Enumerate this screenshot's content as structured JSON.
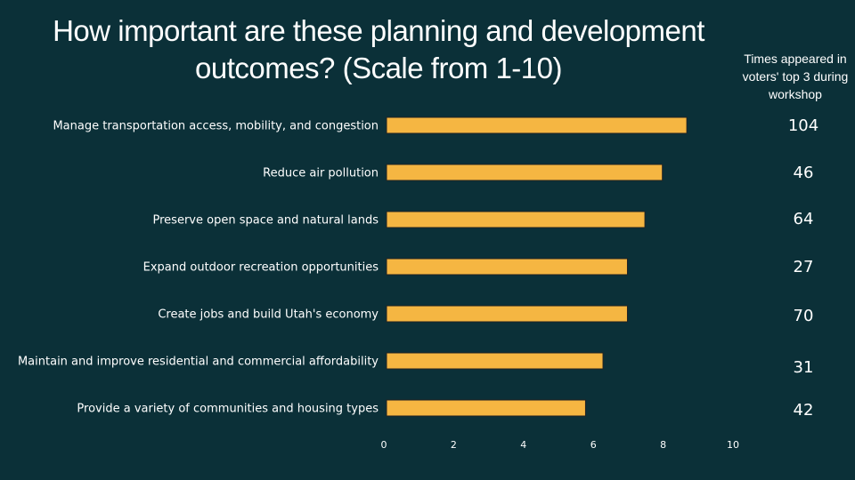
{
  "chart_data": {
    "type": "bar",
    "orientation": "horizontal",
    "title": "How important are these planning and development outcomes? (Scale from 1-10)",
    "side_note": "Times appeared in voters' top 3 during workshop",
    "categories": [
      "Manage transportation access, mobility, and congestion",
      "Reduce air pollution",
      "Preserve open space and natural lands",
      "Expand outdoor recreation opportunities",
      "Create jobs and build Utah's economy",
      "Maintain and improve residential and commercial affordability",
      "Provide a variety of communities and housing types"
    ],
    "values": [
      8.6,
      7.9,
      7.4,
      6.9,
      6.9,
      6.2,
      5.7
    ],
    "top3_counts": [
      "104",
      "46",
      "64",
      "27",
      "70",
      "31",
      "42"
    ],
    "xlim": [
      0,
      10
    ],
    "xticks": [
      "0",
      "2",
      "4",
      "6",
      "8",
      "10"
    ],
    "grid": false,
    "bar_color": "#f5b642",
    "bar_edge_color": "#222222"
  },
  "colors": {
    "background": "#0b3038",
    "text": "#ffffff"
  }
}
